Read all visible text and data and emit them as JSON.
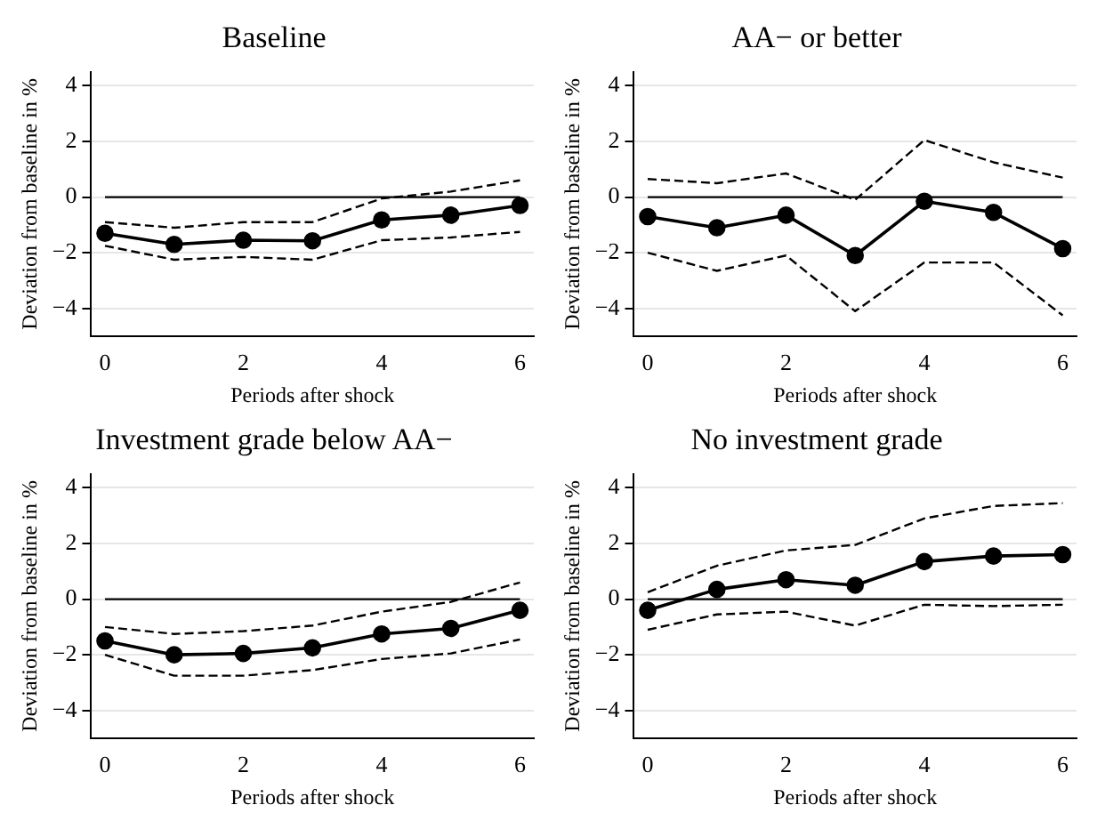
{
  "chart_data": [
    {
      "type": "line",
      "title": "Baseline",
      "xlabel": "Periods after shock",
      "ylabel": "Deviation from baseline in %",
      "x": [
        0,
        1,
        2,
        3,
        4,
        5,
        6
      ],
      "xlim": [
        -0.2,
        6.2
      ],
      "xticks": [
        0,
        2,
        4,
        6
      ],
      "ylim": [
        -5,
        4.5
      ],
      "yticks": [
        -4,
        -2,
        0,
        2,
        4
      ],
      "grid": "y",
      "ref_lines": [
        {
          "axis": "y",
          "value": 0,
          "color": "#000000"
        }
      ],
      "series": [
        {
          "color": "#000000",
          "marker": "circle",
          "line_style": "solid",
          "values": [
            -1.3,
            -1.7,
            -1.55,
            -1.57,
            -0.82,
            -0.65,
            -0.3
          ]
        },
        {
          "color": "#000000",
          "marker": "none",
          "line_style": "dashed",
          "values": [
            -0.9,
            -1.1,
            -0.9,
            -0.9,
            -0.05,
            0.2,
            0.6
          ]
        },
        {
          "color": "#000000",
          "marker": "none",
          "line_style": "dashed",
          "values": [
            -1.75,
            -2.25,
            -2.15,
            -2.25,
            -1.55,
            -1.45,
            -1.25
          ]
        }
      ]
    },
    {
      "type": "line",
      "title": "AA− or better",
      "xlabel": "Periods after shock",
      "ylabel": "Deviation from baseline in %",
      "x": [
        0,
        1,
        2,
        3,
        4,
        5,
        6
      ],
      "xlim": [
        -0.2,
        6.2
      ],
      "xticks": [
        0,
        2,
        4,
        6
      ],
      "ylim": [
        -5,
        4.5
      ],
      "yticks": [
        -4,
        -2,
        0,
        2,
        4
      ],
      "grid": "y",
      "ref_lines": [
        {
          "axis": "y",
          "value": 0,
          "color": "#000000"
        }
      ],
      "series": [
        {
          "color": "#000000",
          "marker": "circle",
          "line_style": "solid",
          "values": [
            -0.7,
            -1.1,
            -0.65,
            -2.1,
            -0.15,
            -0.55,
            -1.85
          ]
        },
        {
          "color": "#000000",
          "marker": "none",
          "line_style": "dashed",
          "values": [
            0.65,
            0.5,
            0.85,
            -0.1,
            2.05,
            1.25,
            0.7
          ]
        },
        {
          "color": "#000000",
          "marker": "none",
          "line_style": "dashed",
          "values": [
            -2.0,
            -2.65,
            -2.1,
            -4.1,
            -2.35,
            -2.35,
            -4.25
          ]
        }
      ]
    },
    {
      "type": "line",
      "title": "Investment grade below AA−",
      "xlabel": "Periods after shock",
      "ylabel": "Deviation from baseline in %",
      "x": [
        0,
        1,
        2,
        3,
        4,
        5,
        6
      ],
      "xlim": [
        -0.2,
        6.2
      ],
      "xticks": [
        0,
        2,
        4,
        6
      ],
      "ylim": [
        -5,
        4.5
      ],
      "yticks": [
        -4,
        -2,
        0,
        2,
        4
      ],
      "grid": "y",
      "ref_lines": [
        {
          "axis": "y",
          "value": 0,
          "color": "#000000"
        }
      ],
      "series": [
        {
          "color": "#000000",
          "marker": "circle",
          "line_style": "solid",
          "values": [
            -1.5,
            -2.0,
            -1.95,
            -1.75,
            -1.25,
            -1.05,
            -0.4
          ]
        },
        {
          "color": "#000000",
          "marker": "none",
          "line_style": "dashed",
          "values": [
            -1.0,
            -1.25,
            -1.15,
            -0.95,
            -0.45,
            -0.1,
            0.6
          ]
        },
        {
          "color": "#000000",
          "marker": "none",
          "line_style": "dashed",
          "values": [
            -2.0,
            -2.75,
            -2.75,
            -2.55,
            -2.15,
            -1.95,
            -1.45
          ]
        }
      ]
    },
    {
      "type": "line",
      "title": "No investment grade",
      "xlabel": "Periods after shock",
      "ylabel": "Deviation from baseline in %",
      "x": [
        0,
        1,
        2,
        3,
        4,
        5,
        6
      ],
      "xlim": [
        -0.2,
        6.2
      ],
      "xticks": [
        0,
        2,
        4,
        6
      ],
      "ylim": [
        -5,
        4.5
      ],
      "yticks": [
        -4,
        -2,
        0,
        2,
        4
      ],
      "grid": "y",
      "ref_lines": [
        {
          "axis": "y",
          "value": 0,
          "color": "#000000"
        }
      ],
      "series": [
        {
          "color": "#000000",
          "marker": "circle",
          "line_style": "solid",
          "values": [
            -0.4,
            0.35,
            0.7,
            0.5,
            1.35,
            1.55,
            1.6
          ]
        },
        {
          "color": "#000000",
          "marker": "none",
          "line_style": "dashed",
          "values": [
            0.25,
            1.2,
            1.75,
            1.95,
            2.9,
            3.35,
            3.45
          ]
        },
        {
          "color": "#000000",
          "marker": "none",
          "line_style": "dashed",
          "values": [
            -1.1,
            -0.55,
            -0.45,
            -0.95,
            -0.2,
            -0.25,
            -0.2
          ]
        }
      ]
    }
  ]
}
